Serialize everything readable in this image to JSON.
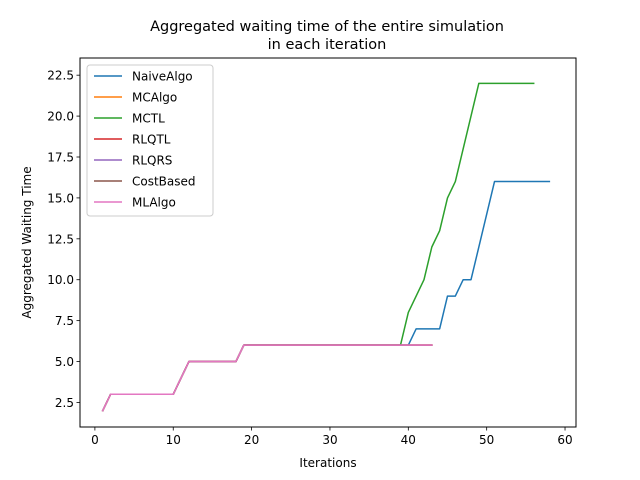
{
  "chart_data": {
    "type": "line",
    "title_lines": [
      "Aggregated waiting time of the entire simulation",
      "in each iteration"
    ],
    "xlabel": "Iterations",
    "ylabel": "Aggregated Waiting Time",
    "xlim": [
      -1.9,
      61.4
    ],
    "ylim": [
      1.0,
      23.55
    ],
    "xticks": [
      0,
      10,
      20,
      30,
      40,
      50,
      60
    ],
    "xtick_labels": [
      "0",
      "10",
      "20",
      "30",
      "40",
      "50",
      "60"
    ],
    "yticks": [
      2.5,
      5.0,
      7.5,
      10.0,
      12.5,
      15.0,
      17.5,
      20.0,
      22.5
    ],
    "ytick_labels": [
      "2.5",
      "5.0",
      "7.5",
      "10.0",
      "12.5",
      "15.0",
      "17.5",
      "20.0",
      "22.5"
    ],
    "grid": false,
    "legend_position": "upper-left",
    "series": [
      {
        "name": "NaiveAlgo",
        "color": "#1f77b4",
        "x": [
          1,
          2,
          10,
          12,
          18,
          19,
          39,
          40,
          41,
          44,
          45,
          46,
          47,
          48,
          51,
          58
        ],
        "y": [
          2,
          3,
          3,
          5,
          5,
          6,
          6,
          6,
          7,
          7,
          9,
          9,
          10,
          10,
          16,
          16
        ]
      },
      {
        "name": "MCAlgo",
        "color": "#ff7f0e",
        "x": [
          1,
          2,
          10,
          12,
          18,
          19,
          43
        ],
        "y": [
          2,
          3,
          3,
          5,
          5,
          6,
          6
        ]
      },
      {
        "name": "MCTL",
        "color": "#2ca02c",
        "x": [
          1,
          2,
          10,
          12,
          18,
          19,
          39,
          40,
          42,
          43,
          44,
          45,
          46,
          49,
          56
        ],
        "y": [
          2,
          3,
          3,
          5,
          5,
          6,
          6,
          8,
          10,
          12,
          13,
          15,
          16,
          22,
          22
        ]
      },
      {
        "name": "RLQTL",
        "color": "#d62728",
        "x": [
          1,
          2,
          10,
          12,
          18,
          19,
          43
        ],
        "y": [
          2,
          3,
          3,
          5,
          5,
          6,
          6
        ]
      },
      {
        "name": "RLQRS",
        "color": "#9467bd",
        "x": [
          1,
          2,
          10,
          12,
          18,
          19,
          43
        ],
        "y": [
          2,
          3,
          3,
          5,
          5,
          6,
          6
        ]
      },
      {
        "name": "CostBased",
        "color": "#8c564b",
        "x": [
          1,
          2,
          10,
          12,
          18,
          19,
          43
        ],
        "y": [
          2,
          3,
          3,
          5,
          5,
          6,
          6
        ]
      },
      {
        "name": "MLAlgo",
        "color": "#e377c2",
        "x": [
          1,
          2,
          10,
          12,
          18,
          19,
          43
        ],
        "y": [
          2,
          3,
          3,
          5,
          5,
          6,
          6
        ]
      }
    ]
  }
}
